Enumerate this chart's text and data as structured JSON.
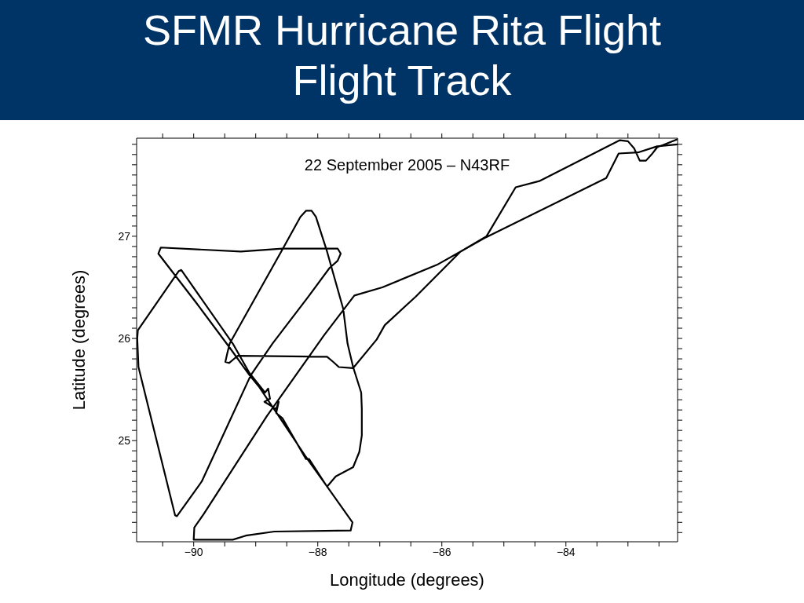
{
  "chart_data": {
    "type": "line",
    "title": "SFMR Hurricane Rita Flight\nFlight Track",
    "xlabel": "Longitude (degrees)",
    "ylabel": "Latitude (degrees)",
    "annotations": [
      "22 September 2005 – N43RF"
    ],
    "xlim": [
      -90.92,
      -82.2
    ],
    "xticks": [
      {
        "value": -90.5,
        "label": null
      },
      -90,
      {
        "value": -89.5,
        "label": null
      },
      {
        "value": -89,
        "label": null
      },
      {
        "value": -88.5,
        "label": null
      },
      -88,
      {
        "value": -87.5,
        "label": null
      },
      {
        "value": -87,
        "label": null
      },
      {
        "value": -86.5,
        "label": null
      },
      -86,
      {
        "value": -85.5,
        "label": null
      },
      {
        "value": -85,
        "label": null
      },
      {
        "value": -84.5,
        "label": null
      },
      -84,
      {
        "value": -83.5,
        "label": null
      },
      {
        "value": -83,
        "label": null
      },
      {
        "value": -82.5,
        "label": null
      }
    ],
    "ylim": [
      24.01,
      27.96
    ],
    "yticks": [
      {
        "value": 24.1,
        "label": null
      },
      {
        "value": 24.2,
        "label": null
      },
      {
        "value": 24.3,
        "label": null
      },
      {
        "value": 24.4,
        "label": null
      },
      {
        "value": 24.5,
        "label": null
      },
      {
        "value": 24.6,
        "label": null
      },
      {
        "value": 24.7,
        "label": null
      },
      {
        "value": 24.8,
        "label": null
      },
      {
        "value": 24.9,
        "label": null
      },
      25,
      {
        "value": 25.1,
        "label": null
      },
      {
        "value": 25.2,
        "label": null
      },
      {
        "value": 25.3,
        "label": null
      },
      {
        "value": 25.4,
        "label": null
      },
      {
        "value": 25.5,
        "label": null
      },
      {
        "value": 25.6,
        "label": null
      },
      {
        "value": 25.7,
        "label": null
      },
      {
        "value": 25.8,
        "label": null
      },
      {
        "value": 25.9,
        "label": null
      },
      26,
      {
        "value": 26.1,
        "label": null
      },
      {
        "value": 26.2,
        "label": null
      },
      {
        "value": 26.3,
        "label": null
      },
      {
        "value": 26.4,
        "label": null
      },
      {
        "value": 26.5,
        "label": null
      },
      {
        "value": 26.6,
        "label": null
      },
      {
        "value": 26.7,
        "label": null
      },
      {
        "value": 26.8,
        "label": null
      },
      {
        "value": 26.9,
        "label": null
      },
      27,
      {
        "value": 27.1,
        "label": null
      },
      {
        "value": 27.2,
        "label": null
      },
      {
        "value": 27.3,
        "label": null
      },
      {
        "value": 27.4,
        "label": null
      },
      {
        "value": 27.5,
        "label": null
      },
      {
        "value": 27.6,
        "label": null
      },
      {
        "value": 27.7,
        "label": null
      },
      {
        "value": 27.8,
        "label": null
      },
      {
        "value": 27.9,
        "label": null
      }
    ],
    "marker": "none",
    "line_style": "solid",
    "series": [
      {
        "color": "#000000",
        "x": [
          -82.2,
          -82.53,
          -82.62,
          -82.71,
          -82.81,
          -82.9,
          -83.0,
          -83.13,
          -84.43,
          -84.81,
          -85.28,
          -85.7,
          -86.08,
          -86.96,
          -87.41,
          -87.9,
          -88.82,
          -89.84,
          -89.99,
          -90.0,
          -89.37,
          -89.16,
          -88.7,
          -87.47,
          -87.44,
          -87.85,
          -88.19,
          -88.63,
          -88.95,
          -89.1,
          -89.42,
          -89.96,
          -90.57,
          -90.53,
          -89.24,
          -88.57,
          -87.68,
          -87.63,
          -87.68,
          -87.81,
          -88.15,
          -88.73,
          -89.08,
          -89.87,
          -90.27,
          -90.3,
          -90.89,
          -90.91,
          -90.9,
          -90.24,
          -90.2,
          -89.37,
          -89.1,
          -88.85,
          -88.8,
          -88.77,
          -88.86,
          -88.67,
          -88.63,
          -88.67,
          -88.57,
          -88.19,
          -88.14,
          -87.85,
          -87.71,
          -87.43,
          -87.33,
          -87.29,
          -87.29,
          -87.3,
          -87.43,
          -87.52,
          -87.59,
          -87.85,
          -88.03,
          -88.1,
          -88.19,
          -88.28,
          -88.57,
          -88.95,
          -89.42,
          -89.46,
          -89.49,
          -89.43,
          -89.33,
          -89.29,
          -87.85,
          -87.75,
          -87.66,
          -87.43,
          -87.05,
          -86.92,
          -86.42,
          -85.7,
          -85.32,
          -83.35,
          -83.15,
          -82.84,
          -82.53,
          -82.2
        ],
        "values": [
          27.95,
          27.87,
          27.8,
          27.74,
          27.74,
          27.86,
          27.93,
          27.94,
          27.54,
          27.48,
          27.0,
          26.85,
          26.72,
          26.5,
          26.42,
          26.03,
          25.24,
          24.28,
          24.15,
          24.03,
          24.03,
          24.07,
          24.11,
          24.12,
          24.2,
          24.55,
          24.84,
          25.24,
          25.53,
          25.64,
          25.91,
          26.35,
          26.83,
          26.89,
          26.85,
          26.88,
          26.88,
          26.83,
          26.76,
          26.69,
          26.41,
          25.95,
          25.64,
          24.6,
          24.26,
          24.27,
          25.72,
          26.0,
          26.08,
          26.66,
          26.67,
          25.95,
          25.66,
          25.47,
          25.51,
          25.41,
          25.38,
          25.31,
          25.38,
          25.27,
          25.22,
          24.82,
          24.82,
          24.55,
          24.65,
          24.74,
          24.89,
          25.05,
          25.31,
          25.47,
          25.72,
          25.95,
          26.29,
          26.85,
          27.19,
          27.25,
          27.25,
          27.19,
          26.87,
          26.46,
          25.95,
          25.85,
          25.77,
          25.76,
          25.81,
          25.83,
          25.82,
          25.77,
          25.72,
          25.71,
          25.99,
          26.13,
          26.41,
          26.85,
          26.98,
          27.57,
          27.81,
          27.82,
          27.88,
          27.9
        ]
      }
    ]
  }
}
